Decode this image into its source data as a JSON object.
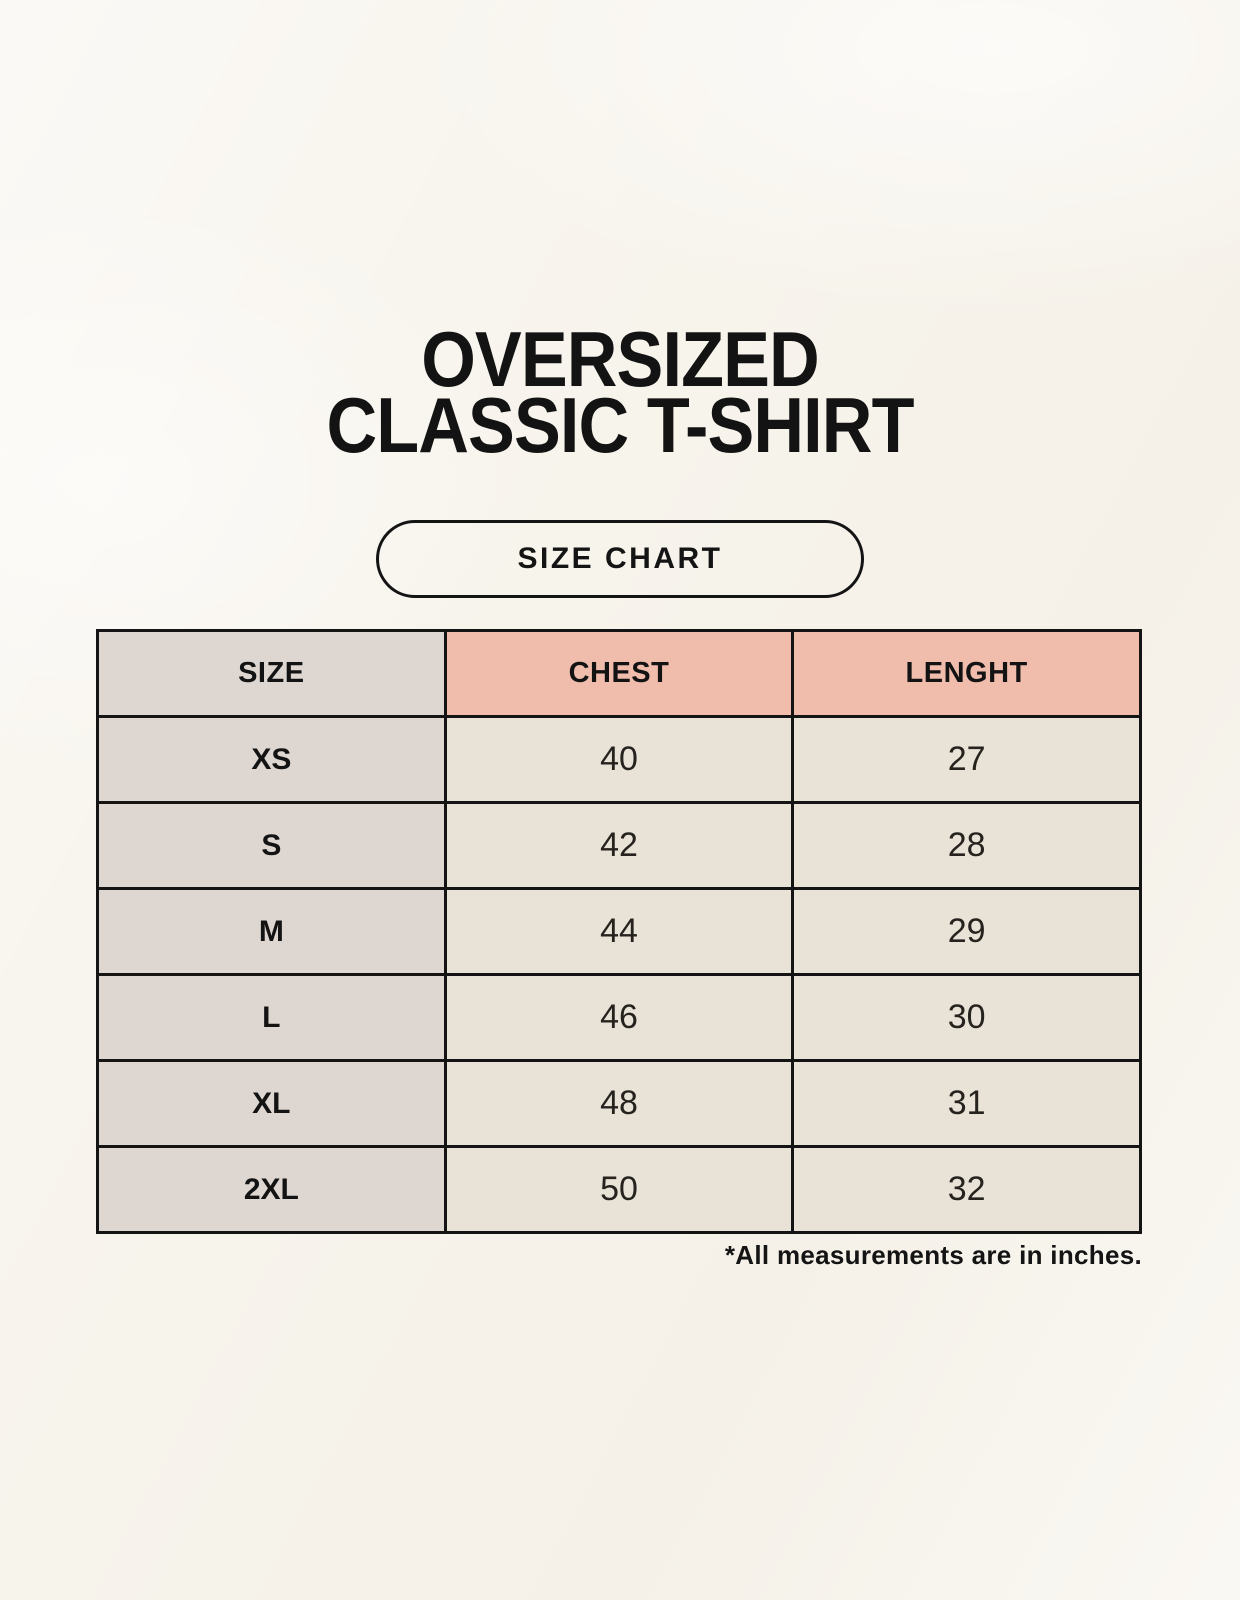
{
  "header": {
    "title_line1": "OVERSIZED",
    "title_line2": "CLASSIC T-SHIRT",
    "badge_label": "SIZE CHART"
  },
  "chart_data": {
    "type": "table",
    "title": "OVERSIZED CLASSIC T-SHIRT SIZE CHART",
    "columns": [
      "SIZE",
      "CHEST",
      "LENGHT"
    ],
    "rows": [
      {
        "size": "XS",
        "chest": 40,
        "length": 27
      },
      {
        "size": "S",
        "chest": 42,
        "length": 28
      },
      {
        "size": "M",
        "chest": 44,
        "length": 29
      },
      {
        "size": "L",
        "chest": 46,
        "length": 30
      },
      {
        "size": "XL",
        "chest": 48,
        "length": 31
      },
      {
        "size": "2XL",
        "chest": 50,
        "length": 32
      }
    ],
    "units": "inches"
  },
  "footnote": "*All measurements are in inches.",
  "colors": {
    "background": "#f8f5ee",
    "header_pink": "#f0bcac",
    "header_gray": "#ded7d1",
    "cell_beige": "#e9e2d7",
    "border_black": "#141414",
    "text_black": "#181818"
  }
}
